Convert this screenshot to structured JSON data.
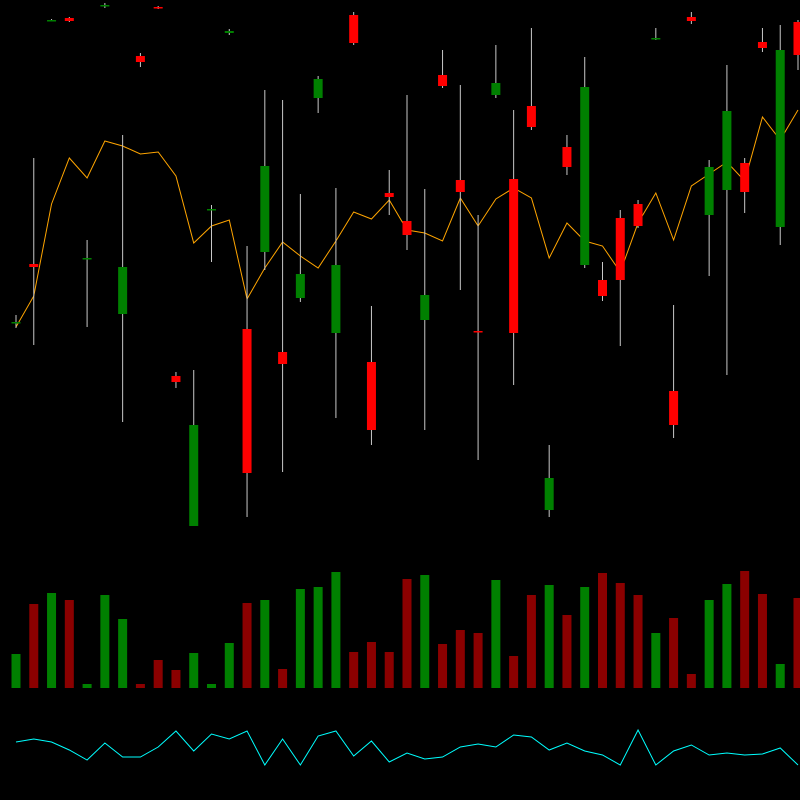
{
  "chart_data": [
    {
      "type": "candlestick",
      "open": [
        218,
        276,
        520,
        522,
        282,
        534,
        226,
        484,
        533,
        164,
        14,
        331,
        507,
        211,
        288,
        188,
        242,
        442,
        207,
        525,
        178,
        347,
        319,
        220,
        465,
        360,
        209,
        445,
        361,
        434,
        30,
        393,
        275,
        260,
        322,
        336,
        502,
        149,
        523,
        325,
        350,
        377,
        498,
        313,
        518
      ],
      "high": [
        225,
        382,
        521,
        523,
        300,
        537,
        405,
        487,
        534,
        168,
        170,
        335,
        511,
        294,
        450,
        440,
        346,
        464,
        352,
        528,
        234,
        370,
        445,
        351,
        490,
        455,
        325,
        495,
        430,
        512,
        95,
        405,
        483,
        278,
        330,
        340,
        512,
        235,
        528,
        380,
        475,
        382,
        512,
        515,
        520
      ],
      "low": [
        212,
        195,
        519,
        518,
        213,
        532,
        118,
        473,
        531,
        152,
        14,
        278,
        505,
        23,
        270,
        68,
        238,
        427,
        122,
        495,
        95,
        325,
        290,
        110,
        452,
        250,
        80,
        442,
        155,
        410,
        23,
        365,
        272,
        239,
        194,
        312,
        500,
        102,
        516,
        264,
        165,
        327,
        488,
        295,
        470
      ],
      "close": [
        218,
        273,
        520,
        519,
        282,
        535,
        273,
        478,
        532,
        158,
        115,
        331,
        509,
        67,
        374,
        176,
        266,
        461,
        275,
        497,
        110,
        343,
        305,
        245,
        454,
        348,
        208,
        457,
        207,
        413,
        62,
        373,
        453,
        244,
        260,
        314,
        502,
        115,
        519,
        373,
        429,
        348,
        492,
        490,
        485
      ],
      "up_color": "#008000",
      "down_color": "#ff0000",
      "wick_color": "#c8c8c8",
      "ylim": [
        0,
        540
      ],
      "series": [
        {
          "color": "#ffa500",
          "values": [
            213,
            244,
            336,
            382,
            362,
            399,
            394,
            386,
            388,
            364,
            297,
            314,
            320,
            241,
            272,
            298,
            284,
            272,
            299,
            328,
            321,
            340,
            310,
            307,
            299,
            342,
            314,
            341,
            352,
            342,
            282,
            317,
            299,
            294,
            268,
            317,
            347,
            300,
            354,
            366,
            378,
            359,
            423,
            400,
            430
          ]
        }
      ]
    },
    {
      "type": "bar",
      "values": [
        34,
        84,
        95,
        88,
        4,
        93,
        69,
        4,
        28,
        18,
        35,
        4,
        45,
        85,
        88,
        19,
        99,
        101,
        116,
        36,
        46,
        36,
        109,
        113,
        44,
        58,
        55,
        108,
        32,
        93,
        103,
        73,
        101,
        115,
        105,
        93,
        55,
        70,
        14,
        88,
        104,
        117,
        94,
        24,
        90
      ],
      "up_color": "#008000",
      "down_color": "#8b0000",
      "ylim": [
        0,
        120
      ]
    },
    {
      "type": "line",
      "values": [
        58,
        61,
        58,
        50,
        40,
        57,
        43,
        43,
        53,
        69,
        49,
        66,
        61,
        69,
        35,
        61,
        35,
        64,
        69,
        44,
        59,
        38,
        47,
        41,
        43,
        53,
        56,
        53,
        65,
        63,
        50,
        57,
        49,
        45,
        35,
        70,
        35,
        49,
        55,
        45,
        47,
        45,
        46,
        52,
        35
      ],
      "color": "#00ffff",
      "ylim": [
        0,
        100
      ]
    }
  ]
}
